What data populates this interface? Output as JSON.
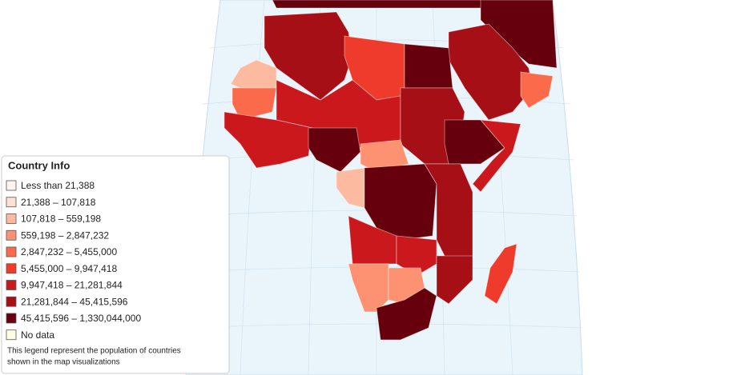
{
  "legend": {
    "title": "Country Info",
    "items": [
      {
        "label": "Less than 21,388",
        "color": "#fff5f0"
      },
      {
        "label": "21,388 – 107,818",
        "color": "#fee0d2"
      },
      {
        "label": "107,818 – 559,198",
        "color": "#fcbba1"
      },
      {
        "label": "559,198 – 2,847,232",
        "color": "#fc9272"
      },
      {
        "label": "2,847,232 – 5,455,000",
        "color": "#fb6a4a"
      },
      {
        "label": "5,455,000 – 9,947,418",
        "color": "#ef3b2c"
      },
      {
        "label": "9,947,418 – 21,281,844",
        "color": "#cb181d"
      },
      {
        "label": "21,281,844 – 45,415,596",
        "color": "#a50f15"
      },
      {
        "label": "45,415,596 – 1,330,044,000",
        "color": "#67000d"
      },
      {
        "label": "No data",
        "color": "#ffffe0"
      }
    ],
    "note_lines": [
      "This legend represent the population of countries",
      "shown in the map visualizations"
    ]
  }
}
